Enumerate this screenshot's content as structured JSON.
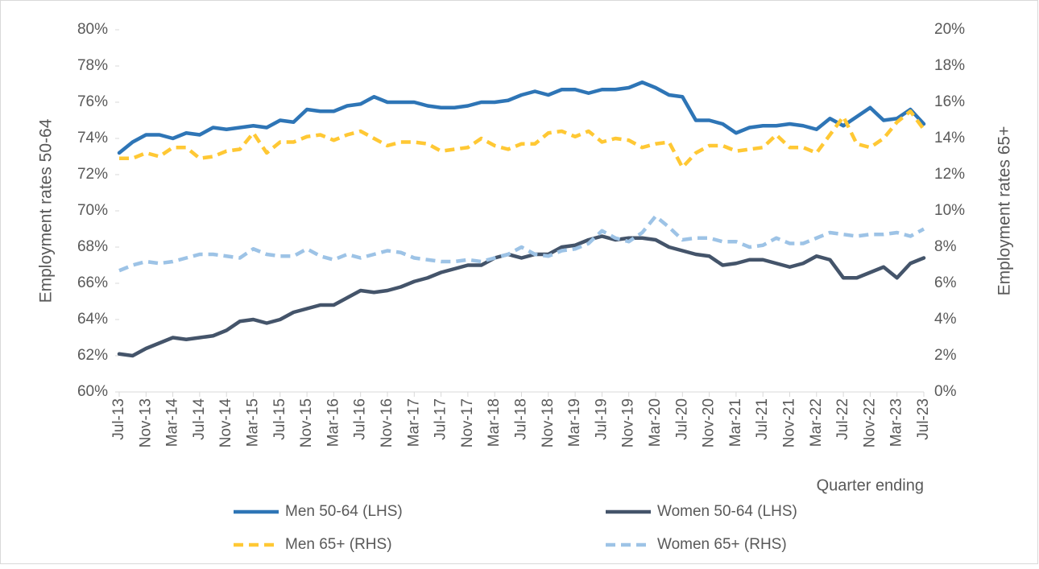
{
  "chart_data": {
    "type": "line",
    "x_label": "Quarter ending",
    "y_label": "Employment rates 50-64",
    "y2_label": "Employment rates 65+",
    "categories": [
      "Jul-13",
      null,
      "Nov-13",
      null,
      "Mar-14",
      null,
      "Jul-14",
      null,
      "Nov-14",
      null,
      "Mar-15",
      null,
      "Jul-15",
      null,
      "Nov-15",
      null,
      "Mar-16",
      null,
      "Jul-16",
      null,
      "Nov-16",
      null,
      "Mar-17",
      null,
      "Jul-17",
      null,
      "Nov-17",
      null,
      "Mar-18",
      null,
      "Jul-18",
      null,
      "Nov-18",
      null,
      "Mar-19",
      null,
      "Jul-19",
      null,
      "Nov-19",
      null,
      "Mar-20",
      null,
      "Jul-20",
      null,
      "Nov-20",
      null,
      "Mar-21",
      null,
      "Jul-21",
      null,
      "Nov-21",
      null,
      "Mar-22",
      null,
      "Jul-22",
      null,
      "Nov-22",
      null,
      "Mar-23",
      null,
      "Jul-23"
    ],
    "ylim": [
      60,
      80
    ],
    "yticks": [
      {
        "value": 60,
        "label": "60%"
      },
      {
        "value": 62,
        "label": "62%"
      },
      {
        "value": 64,
        "label": "64%"
      },
      {
        "value": 66,
        "label": "66%"
      },
      {
        "value": 68,
        "label": "68%"
      },
      {
        "value": 70,
        "label": "70%"
      },
      {
        "value": 72,
        "label": "72%"
      },
      {
        "value": 74,
        "label": "74%"
      },
      {
        "value": 76,
        "label": "76%"
      },
      {
        "value": 78,
        "label": "78%"
      },
      {
        "value": 80,
        "label": "80%"
      }
    ],
    "y2lim": [
      0,
      20
    ],
    "y2ticks": [
      {
        "value": 0,
        "label": "0%"
      },
      {
        "value": 2,
        "label": "2%"
      },
      {
        "value": 4,
        "label": "4%"
      },
      {
        "value": 6,
        "label": "6%"
      },
      {
        "value": 8,
        "label": "8%"
      },
      {
        "value": 10,
        "label": "10%"
      },
      {
        "value": 12,
        "label": "12%"
      },
      {
        "value": 14,
        "label": "14%"
      },
      {
        "value": 16,
        "label": "16%"
      },
      {
        "value": 18,
        "label": "18%"
      },
      {
        "value": 20,
        "label": "20%"
      }
    ],
    "series": [
      {
        "name": "Men 50-64 (LHS)",
        "color": "#2e75b6",
        "dashed": false,
        "values": [
          73.2,
          73.8,
          74.2,
          74.2,
          74.0,
          74.3,
          74.2,
          74.6,
          74.5,
          74.6,
          74.7,
          74.6,
          75.0,
          74.9,
          75.6,
          75.5,
          75.5,
          75.8,
          75.9,
          76.3,
          76.0,
          76.0,
          76.0,
          75.8,
          75.7,
          75.7,
          75.8,
          76.0,
          76.0,
          76.1,
          76.4,
          76.6,
          76.4,
          76.7,
          76.7,
          76.5,
          76.7,
          76.7,
          76.8,
          77.1,
          76.8,
          76.4,
          76.3,
          75.0,
          75.0,
          74.8,
          74.3,
          74.6,
          74.7,
          74.7,
          74.8,
          74.7,
          74.5,
          75.1,
          74.7,
          75.2,
          75.7,
          75.0,
          75.1,
          75.6,
          74.8
        ]
      },
      {
        "name": "Women 50-64 (LHS)",
        "color": "#44546a",
        "dashed": false,
        "values": [
          62.1,
          62.0,
          62.4,
          62.7,
          63.0,
          62.9,
          63.0,
          63.1,
          63.4,
          63.9,
          64.0,
          63.8,
          64.0,
          64.4,
          64.6,
          64.8,
          64.8,
          65.2,
          65.6,
          65.5,
          65.6,
          65.8,
          66.1,
          66.3,
          66.6,
          66.8,
          67.0,
          67.0,
          67.4,
          67.6,
          67.4,
          67.6,
          67.6,
          68.0,
          68.1,
          68.4,
          68.6,
          68.4,
          68.5,
          68.5,
          68.4,
          68.0,
          67.8,
          67.6,
          67.5,
          67.0,
          67.1,
          67.3,
          67.3,
          67.1,
          66.9,
          67.1,
          67.5,
          67.3,
          66.3,
          66.3,
          66.6,
          66.9,
          66.3,
          67.1,
          67.4
        ]
      },
      {
        "name": "Men 65+ (RHS)",
        "color": "#ffc834",
        "dashed": true,
        "axis": "y2",
        "values": [
          12.9,
          12.9,
          13.2,
          13.0,
          13.5,
          13.5,
          12.9,
          13.0,
          13.3,
          13.4,
          14.3,
          13.2,
          13.8,
          13.8,
          14.1,
          14.2,
          13.9,
          14.2,
          14.4,
          14.0,
          13.6,
          13.8,
          13.8,
          13.7,
          13.3,
          13.4,
          13.5,
          14.0,
          13.6,
          13.4,
          13.7,
          13.7,
          14.3,
          14.4,
          14.1,
          14.4,
          13.8,
          14.0,
          13.9,
          13.5,
          13.7,
          13.8,
          12.4,
          13.2,
          13.6,
          13.6,
          13.3,
          13.4,
          13.5,
          14.2,
          13.5,
          13.5,
          13.2,
          14.2,
          15.2,
          13.7,
          13.5,
          14.0,
          14.9,
          15.5,
          14.5
        ]
      },
      {
        "name": "Women 65+ (RHS)",
        "color": "#9dc3e6",
        "dashed": true,
        "axis": "y2",
        "values": [
          6.7,
          7.0,
          7.2,
          7.1,
          7.2,
          7.4,
          7.6,
          7.6,
          7.5,
          7.4,
          7.9,
          7.6,
          7.5,
          7.5,
          7.9,
          7.5,
          7.3,
          7.6,
          7.4,
          7.6,
          7.8,
          7.7,
          7.4,
          7.3,
          7.2,
          7.2,
          7.3,
          7.2,
          7.4,
          7.6,
          8.0,
          7.6,
          7.5,
          7.8,
          7.9,
          8.2,
          8.9,
          8.5,
          8.3,
          8.8,
          9.7,
          9.1,
          8.4,
          8.5,
          8.5,
          8.3,
          8.3,
          8.0,
          8.1,
          8.5,
          8.2,
          8.2,
          8.5,
          8.8,
          8.7,
          8.6,
          8.7,
          8.7,
          8.8,
          8.6,
          9.0
        ]
      }
    ]
  }
}
